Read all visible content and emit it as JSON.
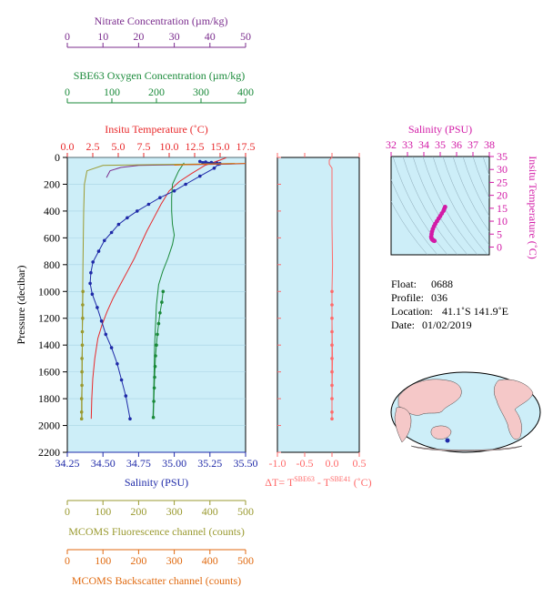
{
  "colors": {
    "nitrate": "#7b2d8e",
    "oxygen": "#1a8a3a",
    "temperature": "#e8282a",
    "salinity": "#1f2aa8",
    "fluorescence": "#9a9a30",
    "backscatter": "#e06a10",
    "delta_t": "#ff6a6a",
    "ts_diagram": "#d21aa6",
    "plot_bg": "#cdeef8"
  },
  "chart_data": {
    "type": "line",
    "pressure_axis": {
      "label": "Pressure (decibar)",
      "range": [
        0,
        2200
      ],
      "reversed": true,
      "ticks": [
        "0",
        "200",
        "400",
        "600",
        "800",
        "1000",
        "1200",
        "1400",
        "1600",
        "1800",
        "2000",
        "2200"
      ]
    },
    "top_axes": [
      {
        "id": "nitrate",
        "label": "Nitrate Concentration (µm/kg)",
        "range": [
          0,
          50
        ],
        "ticks": [
          "0",
          "10",
          "20",
          "30",
          "40",
          "50"
        ]
      },
      {
        "id": "oxygen",
        "label": "SBE63 Oxygen Concentration (µm/kg)",
        "range": [
          0,
          400
        ],
        "ticks": [
          "0",
          "100",
          "200",
          "300",
          "400"
        ]
      },
      {
        "id": "temperature",
        "label": "Insitu Temperature (˚C)",
        "range": [
          0,
          17.5
        ],
        "ticks": [
          "0.0",
          "2.5",
          "5.0",
          "7.5",
          "10.0",
          "12.5",
          "15.0",
          "17.5"
        ]
      }
    ],
    "bottom_axes": [
      {
        "id": "salinity",
        "label": "Salinity (PSU)",
        "range": [
          34.25,
          35.5
        ],
        "ticks": [
          "34.25",
          "34.50",
          "34.75",
          "35.00",
          "35.25",
          "35.50"
        ]
      },
      {
        "id": "fluorescence",
        "label": "MCOMS Fluorescence channel (counts)",
        "range": [
          0,
          500
        ],
        "ticks": [
          "0",
          "100",
          "200",
          "300",
          "400",
          "500"
        ]
      },
      {
        "id": "backscatter",
        "label": "MCOMS Backscatter channel (counts)",
        "range": [
          0,
          500
        ],
        "ticks": [
          "0",
          "100",
          "200",
          "300",
          "400",
          "500"
        ]
      }
    ],
    "delta_axis": {
      "label_prefix": "ΔT= T",
      "sup1": "SBE63",
      "label_mid": " - T",
      "sup2": "SBE41",
      "label_suffix": " (˚C)",
      "range": [
        -1.0,
        0.5
      ],
      "ticks": [
        "-1.0",
        "-0.5",
        "0.0",
        "0.5"
      ]
    },
    "ts_axis": {
      "title": "Salinity (PSU)",
      "ylabel": "Insitu Temperature (˚C)",
      "xrange": [
        32,
        38
      ],
      "yrange": [
        -3,
        35
      ],
      "xticks": [
        "32",
        "33",
        "34",
        "35",
        "36",
        "37",
        "38"
      ],
      "yticks": [
        "0",
        "5",
        "10",
        "15",
        "20",
        "25",
        "30",
        "35"
      ]
    },
    "series": [
      {
        "id": "temperature",
        "axis": "temperature",
        "style": "line",
        "x": [
          15.6,
          15.0,
          13.5,
          12.2,
          11.0,
          10.0,
          9.2,
          8.5,
          7.8,
          7.2,
          6.6,
          5.9,
          5.2,
          4.5,
          3.9,
          3.4,
          3.0,
          2.7,
          2.5,
          2.4,
          2.35
        ],
        "y": [
          2,
          20,
          60,
          120,
          180,
          250,
          350,
          450,
          550,
          650,
          750,
          850,
          950,
          1050,
          1150,
          1250,
          1350,
          1500,
          1650,
          1800,
          1950
        ]
      },
      {
        "id": "salinity",
        "axis": "salinity",
        "style": "dots",
        "x": [
          35.31,
          35.28,
          35.18,
          35.08,
          35.0,
          34.9,
          34.82,
          34.74,
          34.67,
          34.61,
          34.56,
          34.51,
          34.47,
          34.43,
          34.415,
          34.41,
          34.425,
          34.46,
          34.49,
          34.52,
          34.56,
          34.6,
          34.63,
          34.66,
          34.69
        ],
        "y": [
          50,
          80,
          140,
          200,
          250,
          300,
          350,
          400,
          450,
          500,
          560,
          620,
          700,
          780,
          860,
          940,
          1020,
          1120,
          1220,
          1320,
          1420,
          1540,
          1660,
          1780,
          1950
        ]
      },
      {
        "id": "salinity_surface",
        "axis": "salinity",
        "style": "dots",
        "x": [
          35.18,
          35.22,
          35.26,
          35.3,
          35.32,
          35.2
        ],
        "y": [
          30,
          34,
          38,
          42,
          46,
          40
        ]
      },
      {
        "id": "oxygen",
        "axis": "oxygen",
        "style": "line",
        "x": [
          262,
          250,
          236,
          234,
          234,
          236,
          240,
          236,
          226,
          214,
          205,
          200,
          198,
          196,
          195,
          194,
          193,
          192
        ],
        "y": [
          40,
          100,
          200,
          300,
          400,
          500,
          580,
          650,
          750,
          850,
          950,
          1100,
          1250,
          1400,
          1550,
          1700,
          1850,
          1950
        ]
      },
      {
        "id": "oxygen_dots",
        "axis": "oxygen",
        "style": "dots",
        "x": [
          215,
          212,
          208,
          205,
          202,
          200,
          198,
          197,
          196,
          195,
          194,
          193
        ],
        "y": [
          1000,
          1080,
          1160,
          1240,
          1320,
          1400,
          1480,
          1560,
          1640,
          1720,
          1820,
          1940
        ]
      },
      {
        "id": "nitrate",
        "axis": "nitrate",
        "style": "line",
        "x": [
          50,
          45,
          30,
          20,
          15,
          12,
          11
        ],
        "y": [
          45,
          50,
          55,
          60,
          75,
          100,
          150
        ]
      },
      {
        "id": "fluorescence",
        "axis": "fluorescence",
        "style": "line",
        "x": [
          470,
          350,
          200,
          100,
          55,
          48,
          46,
          45,
          44,
          43,
          42,
          42,
          41,
          41
        ],
        "y": [
          45,
          50,
          55,
          60,
          100,
          200,
          400,
          600,
          800,
          1000,
          1200,
          1500,
          1800,
          1950
        ]
      },
      {
        "id": "fluorescence_dots",
        "axis": "fluorescence",
        "style": "dots",
        "x": [
          44,
          43,
          43,
          42,
          42,
          41,
          41,
          41,
          40,
          40,
          40
        ],
        "y": [
          1000,
          1100,
          1200,
          1300,
          1400,
          1500,
          1600,
          1700,
          1800,
          1900,
          1950
        ]
      },
      {
        "id": "backscatter",
        "axis": "backscatter",
        "style": "line",
        "x": [
          500,
          420,
          350,
          300
        ],
        "y": [
          45,
          48,
          52,
          58
        ]
      },
      {
        "id": "delta_t",
        "axis": "delta",
        "style": "line",
        "x": [
          0.0,
          -0.05,
          -0.05,
          0.0,
          0.0,
          0.0,
          0.0,
          0.01,
          0.0,
          0.0,
          0.01,
          0.0,
          0.0
        ],
        "y": [
          0,
          20,
          50,
          80,
          150,
          300,
          500,
          800,
          1000,
          1200,
          1500,
          1800,
          1950
        ]
      },
      {
        "id": "delta_t_dots",
        "axis": "delta",
        "style": "dots",
        "x": [
          0.0,
          0.0,
          0.0,
          0.0,
          0.0,
          0.0,
          0.0,
          0.0,
          0.0,
          0.0,
          0.0
        ],
        "y": [
          1000,
          1100,
          1200,
          1300,
          1400,
          1500,
          1600,
          1700,
          1800,
          1900,
          1950
        ]
      },
      {
        "id": "ts",
        "axis": "ts",
        "style": "dots",
        "x": [
          35.3,
          35.25,
          35.2,
          35.1,
          35.0,
          34.9,
          34.8,
          34.7,
          34.62,
          34.55,
          34.5,
          34.47,
          34.45,
          34.46,
          34.5,
          34.55,
          34.6,
          34.65
        ],
        "y": [
          15.5,
          14.8,
          14.0,
          13.0,
          12.0,
          11.0,
          10.0,
          9.0,
          8.0,
          7.0,
          6.0,
          5.0,
          4.0,
          3.5,
          3.0,
          2.7,
          2.5,
          2.4
        ]
      }
    ]
  },
  "float_info": {
    "float_label": "Float:",
    "float_value": "0688",
    "profile_label": "Profile:",
    "profile_value": "036",
    "location_label": "Location:",
    "location_value": "41.1˚S  141.9˚E",
    "date_label": "Date:",
    "date_value": "01/02/2019"
  }
}
